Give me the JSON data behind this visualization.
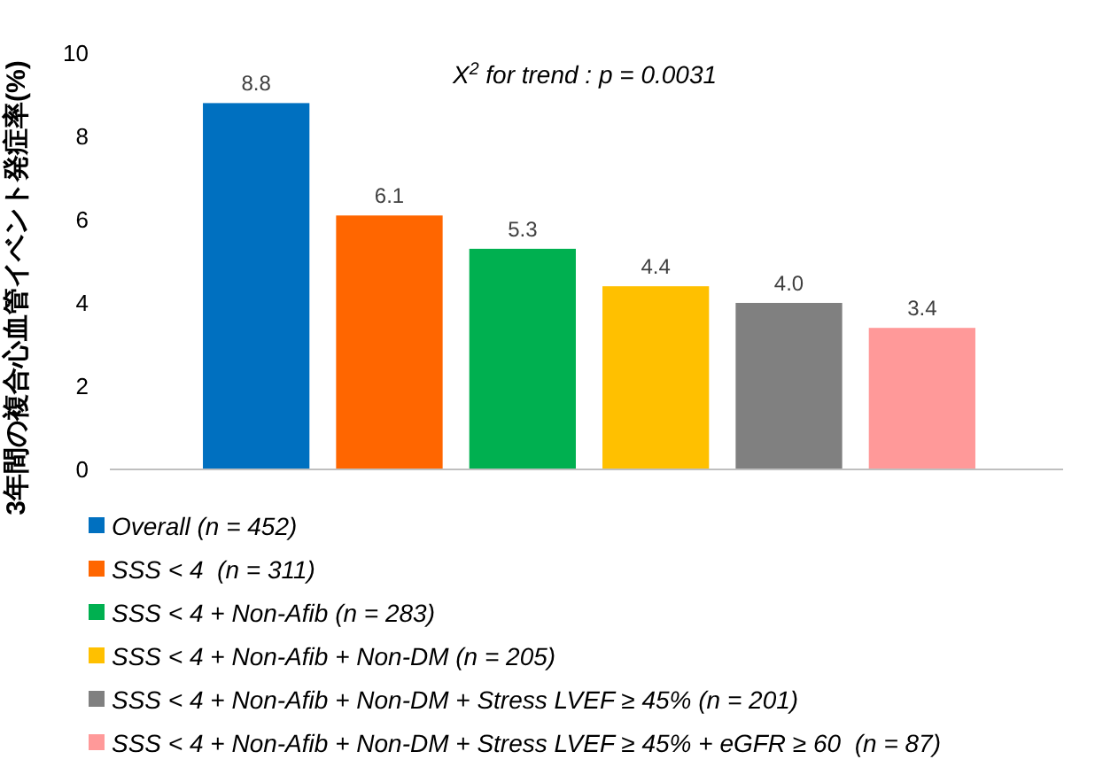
{
  "chart_data": {
    "type": "bar",
    "ylabel": "3年間の複合心血管イベント発症率(%)",
    "annotations": [
      "X$^{2}$ for trend : p = 0.0031"
    ],
    "categories": [
      null,
      null,
      null,
      null,
      null,
      null
    ],
    "series": [
      {
        "name": "Overall (n = 452)",
        "color": "#0070c0",
        "values": [
          8.8,
          null,
          null,
          null,
          null,
          null
        ],
        "value_labels": [
          "8.8",
          null,
          null,
          null,
          null,
          null
        ]
      },
      {
        "name": "SSS < 4  (n = 311)",
        "color": "#ff6600",
        "values": [
          null,
          6.1,
          null,
          null,
          null,
          null
        ],
        "value_labels": [
          null,
          "6.1",
          null,
          null,
          null,
          null
        ]
      },
      {
        "name": "SSS < 4 + Non-Afib (n = 283)",
        "color": "#00b050",
        "values": [
          null,
          null,
          5.3,
          null,
          null,
          null
        ],
        "value_labels": [
          null,
          null,
          "5.3",
          null,
          null,
          null
        ]
      },
      {
        "name": "SSS < 4 + Non-Afib + Non-DM (n = 205)",
        "color": "#ffc000",
        "values": [
          null,
          null,
          null,
          4.4,
          null,
          null
        ],
        "value_labels": [
          null,
          null,
          null,
          "4.4",
          null,
          null
        ]
      },
      {
        "name": "SSS < 4 + Non-Afib + Non-DM + Stress LVEF ≥ 45% (n = 201)",
        "color": "#808080",
        "values": [
          null,
          null,
          null,
          null,
          4.0,
          null
        ],
        "value_labels": [
          null,
          null,
          null,
          null,
          "4.0",
          null
        ]
      },
      {
        "name": "SSS < 4 + Non-Afib + Non-DM + Stress LVEF ≥ 45% + eGFR ≥ 60  (n = 87)",
        "color": "#ff9999",
        "values": [
          null,
          null,
          null,
          null,
          null,
          3.4
        ],
        "value_labels": [
          null,
          null,
          null,
          null,
          null,
          "3.4"
        ]
      }
    ],
    "ylim": [
      0,
      10
    ],
    "yticks": [
      0,
      2,
      4,
      6,
      8,
      10
    ],
    "legend": "bottom left"
  }
}
